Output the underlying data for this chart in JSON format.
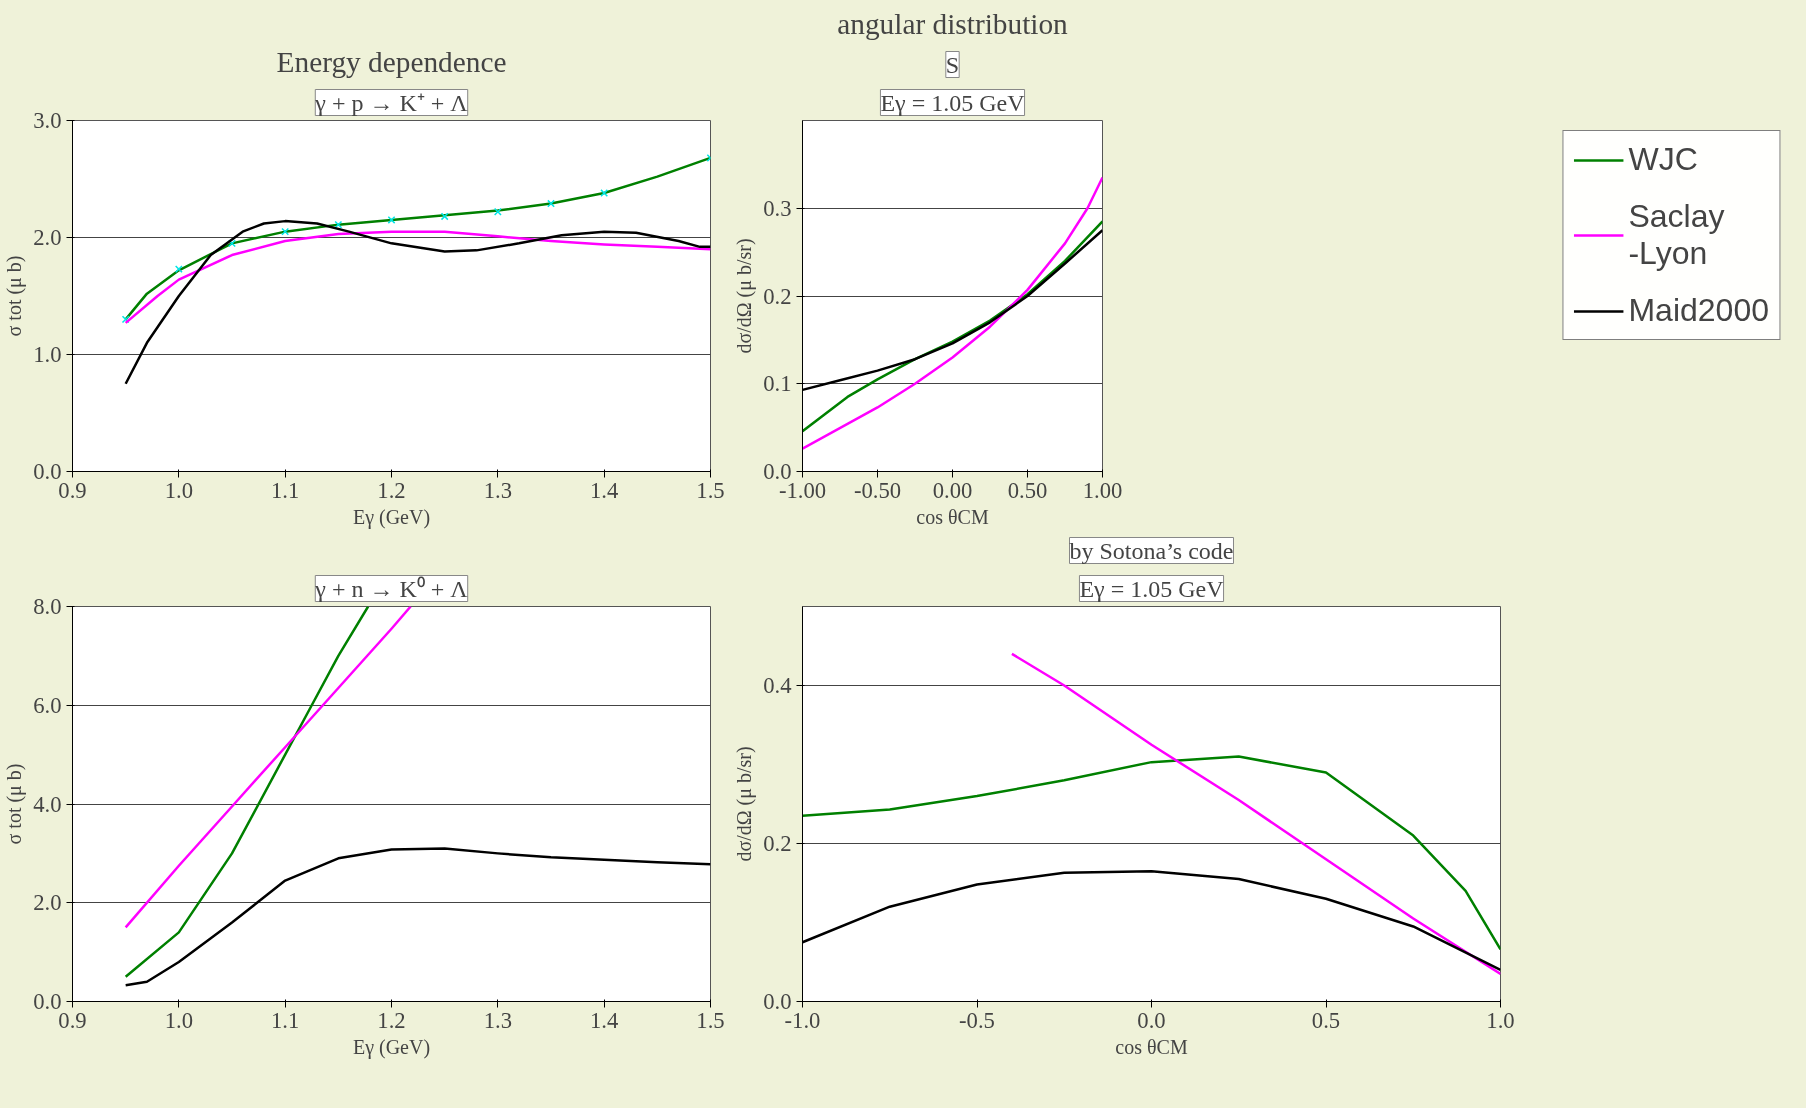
{
  "chart_data": [
    {
      "type": "line",
      "title": "Energy dependence",
      "annotations": [
        "γ + p → K⁺ + Λ"
      ],
      "xlabel": "Eγ (GeV)",
      "ylabel": "σ tot (μ b)",
      "xlim": [
        0.9,
        1.5
      ],
      "ylim": [
        0,
        3
      ],
      "xticks": [
        {
          "value": 0.9,
          "label": "0.9"
        },
        {
          "value": 1.0,
          "label": "1.0"
        },
        {
          "value": 1.1,
          "label": "1.1"
        },
        {
          "value": 1.2,
          "label": "1.2"
        },
        {
          "value": 1.3,
          "label": "1.3"
        },
        {
          "value": 1.4,
          "label": "1.4"
        },
        {
          "value": 1.5,
          "label": "1.5"
        }
      ],
      "yticks": [
        {
          "value": 0,
          "label": "0.0"
        },
        {
          "value": 1,
          "label": "1.0"
        },
        {
          "value": 2,
          "label": "2.0"
        },
        {
          "value": 3,
          "label": "3.0"
        }
      ],
      "grid": "y",
      "legend": false,
      "series": [
        {
          "color": "#008000",
          "x": [
            0.95,
            0.97,
            1.0,
            1.05,
            1.1,
            1.15,
            1.2,
            1.25,
            1.3,
            1.35,
            1.4,
            1.45,
            1.5
          ],
          "values": [
            1.3,
            1.52,
            1.72,
            1.95,
            2.05,
            2.11,
            2.15,
            2.19,
            2.23,
            2.29,
            2.38,
            2.52,
            2.68
          ]
        },
        {
          "type": "scatter",
          "marker": "cross",
          "color": "#00e5e5",
          "x": [
            0.95,
            1.0,
            1.05,
            1.1,
            1.15,
            1.2,
            1.25,
            1.3,
            1.35,
            1.4,
            1.5
          ],
          "values": [
            1.3,
            1.73,
            1.95,
            2.05,
            2.11,
            2.15,
            2.18,
            2.22,
            2.29,
            2.38,
            2.68
          ]
        },
        {
          "color": "#ff00ff",
          "x": [
            0.95,
            0.98,
            1.0,
            1.05,
            1.1,
            1.15,
            1.2,
            1.25,
            1.3,
            1.35,
            1.4,
            1.45,
            1.5
          ],
          "values": [
            1.27,
            1.5,
            1.64,
            1.85,
            1.97,
            2.03,
            2.05,
            2.05,
            2.01,
            1.97,
            1.94,
            1.92,
            1.9
          ]
        },
        {
          "color": "#000000",
          "x": [
            0.95,
            0.97,
            1.0,
            1.03,
            1.06,
            1.08,
            1.1,
            1.13,
            1.16,
            1.2,
            1.25,
            1.28,
            1.32,
            1.36,
            1.4,
            1.43,
            1.47,
            1.49,
            1.5
          ],
          "values": [
            0.75,
            1.1,
            1.5,
            1.85,
            2.05,
            2.12,
            2.14,
            2.12,
            2.05,
            1.95,
            1.88,
            1.89,
            1.95,
            2.02,
            2.05,
            2.04,
            1.97,
            1.92,
            1.92
          ]
        }
      ]
    },
    {
      "type": "line",
      "title": "angular distribution",
      "annotations": [
        "Eγ = 1.05 GeV",
        "S"
      ],
      "xlabel": "cos θCM",
      "ylabel": "dσ/dΩ (μ b/sr)",
      "xlim": [
        -1,
        1
      ],
      "ylim": [
        0,
        0.4
      ],
      "xticks": [
        {
          "value": -1,
          "label": "-1.00"
        },
        {
          "value": -0.5,
          "label": "-0.50"
        },
        {
          "value": 0,
          "label": "0.00"
        },
        {
          "value": 0.5,
          "label": "0.50"
        },
        {
          "value": 1,
          "label": "1.00"
        }
      ],
      "yticks": [
        {
          "value": 0,
          "label": "0.0"
        },
        {
          "value": 0.1,
          "label": "0.1"
        },
        {
          "value": 0.2,
          "label": "0.2"
        },
        {
          "value": 0.3,
          "label": "0.3"
        }
      ],
      "grid": "y",
      "legend": "right",
      "series": [
        {
          "name": "WJC",
          "color": "#008000",
          "x": [
            -1,
            -0.7,
            -0.5,
            -0.25,
            0,
            0.25,
            0.5,
            0.75,
            1
          ],
          "values": [
            0.046,
            0.085,
            0.105,
            0.128,
            0.148,
            0.172,
            0.202,
            0.24,
            0.285
          ]
        },
        {
          "name": "Saclay\n-Lyon",
          "color": "#ff00ff",
          "x": [
            -1,
            -0.5,
            -0.25,
            0,
            0.25,
            0.5,
            0.75,
            0.9,
            1
          ],
          "values": [
            0.026,
            0.073,
            0.1,
            0.13,
            0.165,
            0.207,
            0.26,
            0.3,
            0.335
          ]
        },
        {
          "name": "Maid2000",
          "color": "#000000",
          "x": [
            -1,
            -0.75,
            -0.5,
            -0.25,
            0,
            0.25,
            0.5,
            0.75,
            1
          ],
          "values": [
            0.093,
            0.104,
            0.115,
            0.128,
            0.146,
            0.17,
            0.2,
            0.237,
            0.275
          ]
        }
      ]
    },
    {
      "type": "line",
      "annotations": [
        "γ + n → K⁰ + Λ"
      ],
      "xlabel": "Eγ (GeV)",
      "ylabel": "σ tot (μ b)",
      "xlim": [
        0.9,
        1.5
      ],
      "ylim": [
        0,
        8
      ],
      "xticks": [
        {
          "value": 0.9,
          "label": "0.9"
        },
        {
          "value": 1.0,
          "label": "1.0"
        },
        {
          "value": 1.1,
          "label": "1.1"
        },
        {
          "value": 1.2,
          "label": "1.2"
        },
        {
          "value": 1.3,
          "label": "1.3"
        },
        {
          "value": 1.4,
          "label": "1.4"
        },
        {
          "value": 1.5,
          "label": "1.5"
        }
      ],
      "yticks": [
        {
          "value": 0,
          "label": "0.0"
        },
        {
          "value": 2,
          "label": "2.0"
        },
        {
          "value": 4,
          "label": "4.0"
        },
        {
          "value": 6,
          "label": "6.0"
        },
        {
          "value": 8,
          "label": "8.0"
        }
      ],
      "grid": "y",
      "legend": false,
      "series": [
        {
          "color": "#008000",
          "x": [
            0.95,
            1.0,
            1.05,
            1.1,
            1.125,
            1.15,
            1.178
          ],
          "values": [
            0.5,
            1.4,
            3.0,
            5.0,
            6.0,
            7.0,
            8.0
          ]
        },
        {
          "color": "#ff00ff",
          "x": [
            0.95,
            1.0,
            1.05,
            1.1,
            1.15,
            1.2,
            1.218
          ],
          "values": [
            1.5,
            2.75,
            3.95,
            5.15,
            6.35,
            7.55,
            8.0
          ]
        },
        {
          "color": "#000000",
          "x": [
            0.95,
            0.97,
            1.0,
            1.05,
            1.1,
            1.15,
            1.2,
            1.25,
            1.3,
            1.35,
            1.4,
            1.45,
            1.5
          ],
          "values": [
            0.33,
            0.4,
            0.8,
            1.6,
            2.45,
            2.9,
            3.08,
            3.1,
            3.0,
            2.92,
            2.87,
            2.82,
            2.78
          ]
        }
      ]
    },
    {
      "type": "line",
      "annotations": [
        "Eγ = 1.05 GeV",
        "by Sotona’s code"
      ],
      "xlabel": "cos θCM",
      "ylabel": "dσ/dΩ (μ b/sr)",
      "xlim": [
        -1,
        1
      ],
      "ylim": [
        0,
        0.5
      ],
      "xticks": [
        {
          "value": -1,
          "label": "-1.0"
        },
        {
          "value": -0.5,
          "label": "-0.5"
        },
        {
          "value": 0,
          "label": "0.0"
        },
        {
          "value": 0.5,
          "label": "0.5"
        },
        {
          "value": 1,
          "label": "1.0"
        }
      ],
      "yticks": [
        {
          "value": 0,
          "label": "0.0"
        },
        {
          "value": 0.2,
          "label": "0.2"
        },
        {
          "value": 0.4,
          "label": "0.4"
        }
      ],
      "grid": "y",
      "legend": false,
      "series": [
        {
          "color": "#008000",
          "x": [
            -1,
            -0.75,
            -0.5,
            -0.25,
            0,
            0.25,
            0.5,
            0.75,
            0.9,
            1
          ],
          "values": [
            0.235,
            0.243,
            0.26,
            0.28,
            0.303,
            0.31,
            0.29,
            0.21,
            0.14,
            0.066
          ]
        },
        {
          "color": "#ff00ff",
          "x": [
            -0.4,
            -0.25,
            0,
            0.25,
            0.5,
            0.75,
            1
          ],
          "values": [
            0.44,
            0.4,
            0.325,
            0.255,
            0.18,
            0.105,
            0.035
          ]
        },
        {
          "color": "#000000",
          "x": [
            -1,
            -0.75,
            -0.5,
            -0.25,
            0,
            0.25,
            0.5,
            0.75,
            1
          ],
          "values": [
            0.075,
            0.12,
            0.148,
            0.163,
            0.165,
            0.155,
            0.13,
            0.095,
            0.04
          ]
        }
      ]
    }
  ]
}
